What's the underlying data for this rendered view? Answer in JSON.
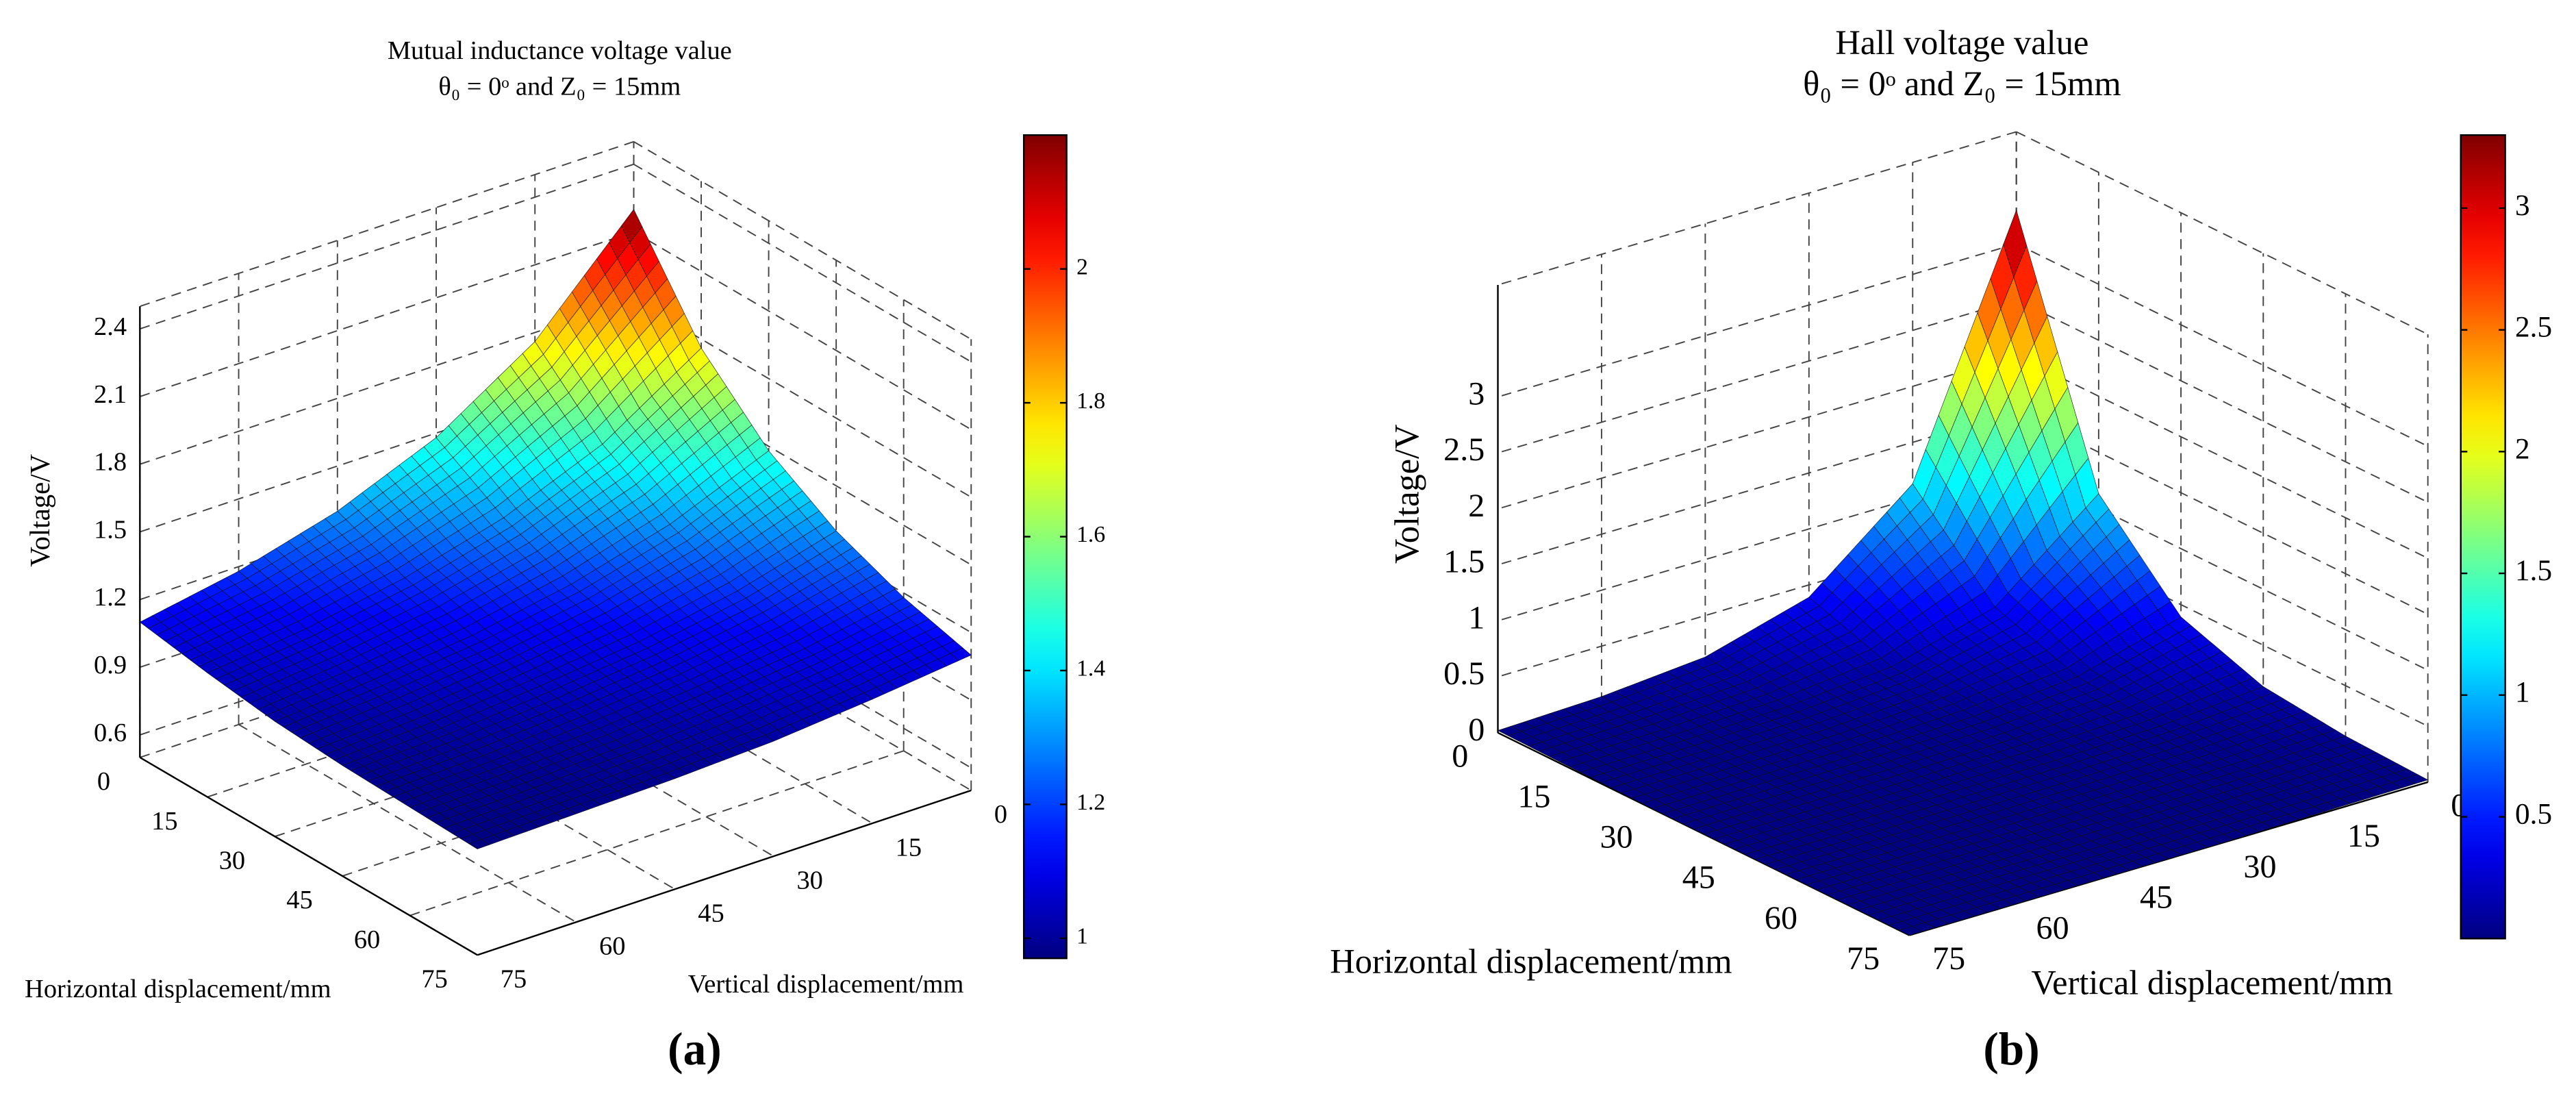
{
  "chart_data": [
    {
      "type": "surface",
      "title": "Mutual inductance voltage value",
      "subtitle": "θ₀ = 0ᵒ and Z₀ = 15mm",
      "xlabel": "Horizontal displacement/mm",
      "ylabel": "Vertical displacement/mm",
      "zlabel": "Voltage/V",
      "panel_label": "(a)",
      "x": [
        0,
        15,
        30,
        45,
        60,
        75
      ],
      "y": [
        0,
        15,
        30,
        45,
        60,
        75
      ],
      "z": [
        [
          2.2,
          1.76,
          1.48,
          1.3,
          1.18,
          1.1
        ],
        [
          1.76,
          1.48,
          1.3,
          1.18,
          1.1,
          1.05
        ],
        [
          1.48,
          1.3,
          1.18,
          1.1,
          1.05,
          1.01
        ],
        [
          1.3,
          1.18,
          1.1,
          1.05,
          1.01,
          0.99
        ],
        [
          1.18,
          1.1,
          1.05,
          1.01,
          0.99,
          0.98
        ],
        [
          1.1,
          1.05,
          1.01,
          0.99,
          0.98,
          0.97
        ]
      ],
      "xlim": [
        0,
        75
      ],
      "xticks": [
        0,
        15,
        30,
        45,
        60,
        75
      ],
      "ylim": [
        0,
        75
      ],
      "yticks": [
        0,
        15,
        30,
        45,
        60,
        75
      ],
      "zlim": [
        0.5,
        2.5
      ],
      "zticks": [
        0.6,
        0.9,
        1.2,
        1.5,
        1.8,
        2.1,
        2.4
      ],
      "clim": [
        0.97,
        2.2
      ],
      "cticks": [
        1,
        1.2,
        1.4,
        1.6,
        1.8,
        2
      ],
      "colormap": "jet",
      "grid": true
    },
    {
      "type": "surface",
      "title": "Hall voltage value",
      "subtitle": "θ₀ = 0ᵒ and Z₀ = 15mm",
      "xlabel": "Horizontal displacement/mm",
      "ylabel": "Vertical displacement/mm",
      "zlabel": "Voltage/V",
      "panel_label": "(b)",
      "x": [
        0,
        15,
        30,
        45,
        60,
        75
      ],
      "y": [
        0,
        15,
        30,
        45,
        60,
        75
      ],
      "z": [
        [
          3.3,
          1.13,
          0.39,
          0.13,
          0.05,
          0.02
        ],
        [
          1.13,
          0.39,
          0.13,
          0.05,
          0.02,
          0.01
        ],
        [
          0.39,
          0.13,
          0.05,
          0.02,
          0.01,
          0
        ],
        [
          0.13,
          0.05,
          0.02,
          0.01,
          0,
          0
        ],
        [
          0.05,
          0.02,
          0.01,
          0,
          0,
          0
        ],
        [
          0.02,
          0.01,
          0,
          0,
          0,
          0
        ]
      ],
      "xlim": [
        0,
        75
      ],
      "xticks": [
        0,
        15,
        30,
        45,
        60,
        75
      ],
      "ylim": [
        0,
        75
      ],
      "yticks": [
        0,
        15,
        30,
        45,
        60,
        75
      ],
      "zlim": [
        0,
        4
      ],
      "zticks": [
        0,
        0.5,
        1,
        1.5,
        2,
        2.5,
        3
      ],
      "clim": [
        0,
        3.3
      ],
      "cticks": [
        0.5,
        1,
        1.5,
        2,
        2.5,
        3
      ],
      "colormap": "jet",
      "grid": true
    }
  ]
}
